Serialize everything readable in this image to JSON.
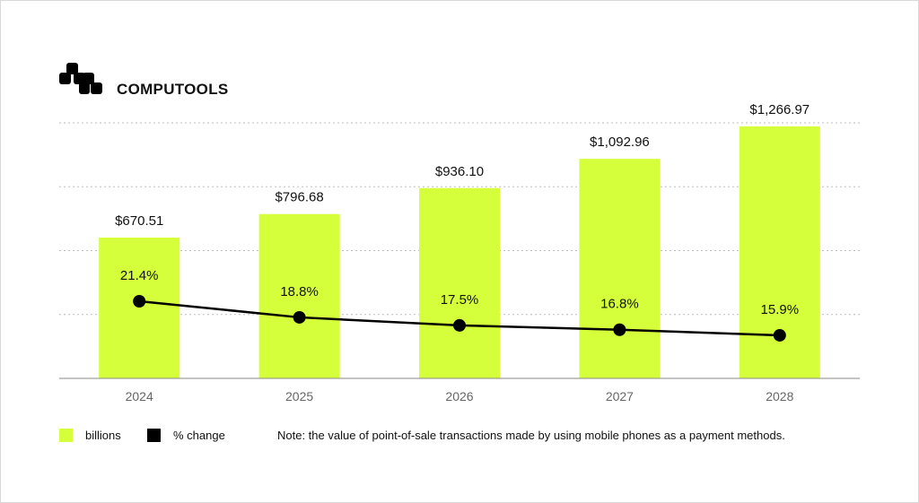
{
  "brand": {
    "name": "COMPUTOOLS"
  },
  "colors": {
    "bar": "#d4ff3a",
    "line": "#000000",
    "grid": "#bdbdbd",
    "text": "#111111"
  },
  "chart_data": {
    "type": "bar",
    "categories": [
      "2024",
      "2025",
      "2026",
      "2027",
      "2028"
    ],
    "series": [
      {
        "name": "billions",
        "type": "bar",
        "values": [
          670.51,
          796.68,
          936.1,
          1092.96,
          1266.97
        ],
        "labels": [
          "$670.51",
          "$796.68",
          "$936.10",
          "$1,092.96",
          "$1,266.97"
        ]
      },
      {
        "name": "% change",
        "type": "line",
        "values": [
          21.4,
          18.8,
          17.5,
          16.8,
          15.9
        ],
        "labels": [
          "21.4%",
          "18.8%",
          "17.5%",
          "16.8%",
          "15.9%"
        ]
      }
    ],
    "grid": true,
    "legend": "bottom-left"
  },
  "legend": {
    "items": [
      {
        "label": "billions"
      },
      {
        "label": "% change"
      }
    ]
  },
  "note": "Note: the value of point-of-sale transactions made by using mobile phones as a payment methods."
}
